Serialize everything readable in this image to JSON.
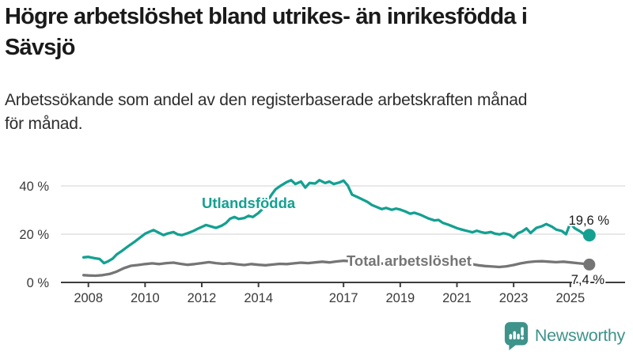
{
  "title": {
    "line1": "Högre arbetslöshet bland utrikes- än inrikesfödda i",
    "line2": "Sävsjö"
  },
  "subtitle": {
    "line1": "Arbetssökande som andel av den registerbaserade arbetskraften månad",
    "line2": "för månad."
  },
  "branding": {
    "name": "Newsworthy",
    "color": "#3E938B"
  },
  "colors": {
    "foreign_born_line": "#14A091",
    "total_line": "#757575",
    "gridline": "#d9d9d9",
    "axis": "#3c3c3c",
    "text": "#3a3a3a",
    "value_label": "#1a1a1a"
  },
  "chart_data": {
    "type": "line",
    "title": "Högre arbetslöshet bland utrikes- än inrikesfödda i Sävsjö",
    "subtitle": "Arbetssökande som andel av den registerbaserade arbetskraften månad för månad.",
    "xlabel": "",
    "ylabel": "",
    "xlim": [
      2007.7,
      2026.0
    ],
    "ylim": [
      0,
      45
    ],
    "grid": "horizontal",
    "x_ticks": [
      2008,
      2010,
      2012,
      2014,
      2017,
      2019,
      2021,
      2023,
      2025
    ],
    "y_ticks": [
      {
        "value": 0,
        "label": "0 %"
      },
      {
        "value": 20,
        "label": "20 %"
      },
      {
        "value": 40,
        "label": "40 %"
      }
    ],
    "series": [
      {
        "name": "Utlandsfödda",
        "color": "#14A091",
        "end_label": "19,6 %",
        "end_value": 19.6,
        "points": [
          [
            2007.83,
            10.4
          ],
          [
            2008.0,
            10.6
          ],
          [
            2008.2,
            10.1
          ],
          [
            2008.4,
            9.7
          ],
          [
            2008.55,
            8.0
          ],
          [
            2008.7,
            8.8
          ],
          [
            2008.85,
            9.8
          ],
          [
            2009.0,
            11.6
          ],
          [
            2009.2,
            13.2
          ],
          [
            2009.4,
            15.0
          ],
          [
            2009.6,
            16.6
          ],
          [
            2009.8,
            18.4
          ],
          [
            2010.0,
            20.2
          ],
          [
            2010.15,
            21.0
          ],
          [
            2010.3,
            21.7
          ],
          [
            2010.5,
            20.5
          ],
          [
            2010.65,
            19.6
          ],
          [
            2010.8,
            20.3
          ],
          [
            2011.0,
            20.9
          ],
          [
            2011.15,
            19.9
          ],
          [
            2011.3,
            19.6
          ],
          [
            2011.5,
            20.4
          ],
          [
            2011.7,
            21.3
          ],
          [
            2011.85,
            22.2
          ],
          [
            2012.0,
            23.0
          ],
          [
            2012.15,
            23.8
          ],
          [
            2012.35,
            23.1
          ],
          [
            2012.5,
            22.6
          ],
          [
            2012.7,
            23.5
          ],
          [
            2012.85,
            24.6
          ],
          [
            2013.0,
            26.4
          ],
          [
            2013.15,
            27.1
          ],
          [
            2013.3,
            26.3
          ],
          [
            2013.5,
            26.7
          ],
          [
            2013.65,
            27.6
          ],
          [
            2013.8,
            27.1
          ],
          [
            2014.0,
            28.8
          ],
          [
            2014.15,
            30.6
          ],
          [
            2014.3,
            33.2
          ],
          [
            2014.45,
            36.2
          ],
          [
            2014.6,
            38.6
          ],
          [
            2014.8,
            40.2
          ],
          [
            2015.0,
            41.6
          ],
          [
            2015.15,
            42.4
          ],
          [
            2015.3,
            40.8
          ],
          [
            2015.5,
            41.8
          ],
          [
            2015.65,
            39.3
          ],
          [
            2015.8,
            41.2
          ],
          [
            2016.0,
            41.0
          ],
          [
            2016.15,
            42.4
          ],
          [
            2016.35,
            41.2
          ],
          [
            2016.5,
            41.8
          ],
          [
            2016.65,
            40.8
          ],
          [
            2016.85,
            41.4
          ],
          [
            2017.0,
            42.2
          ],
          [
            2017.15,
            40.2
          ],
          [
            2017.3,
            36.4
          ],
          [
            2017.5,
            35.3
          ],
          [
            2017.7,
            34.2
          ],
          [
            2017.85,
            33.3
          ],
          [
            2018.0,
            32.1
          ],
          [
            2018.2,
            31.1
          ],
          [
            2018.35,
            30.4
          ],
          [
            2018.5,
            30.9
          ],
          [
            2018.7,
            30.1
          ],
          [
            2018.85,
            30.6
          ],
          [
            2019.0,
            30.2
          ],
          [
            2019.2,
            29.3
          ],
          [
            2019.35,
            28.5
          ],
          [
            2019.5,
            28.9
          ],
          [
            2019.7,
            28.1
          ],
          [
            2019.85,
            27.3
          ],
          [
            2020.0,
            26.5
          ],
          [
            2020.2,
            25.7
          ],
          [
            2020.35,
            25.9
          ],
          [
            2020.5,
            24.7
          ],
          [
            2020.7,
            23.9
          ],
          [
            2020.85,
            23.2
          ],
          [
            2021.0,
            22.5
          ],
          [
            2021.2,
            21.8
          ],
          [
            2021.4,
            21.2
          ],
          [
            2021.55,
            20.8
          ],
          [
            2021.7,
            21.4
          ],
          [
            2021.85,
            20.9
          ],
          [
            2022.0,
            20.5
          ],
          [
            2022.2,
            20.9
          ],
          [
            2022.35,
            20.2
          ],
          [
            2022.5,
            19.9
          ],
          [
            2022.65,
            20.4
          ],
          [
            2022.85,
            19.8
          ],
          [
            2023.0,
            18.6
          ],
          [
            2023.15,
            20.4
          ],
          [
            2023.3,
            21.1
          ],
          [
            2023.45,
            22.4
          ],
          [
            2023.6,
            20.5
          ],
          [
            2023.8,
            22.6
          ],
          [
            2024.0,
            23.3
          ],
          [
            2024.15,
            24.2
          ],
          [
            2024.35,
            23.1
          ],
          [
            2024.5,
            21.9
          ],
          [
            2024.7,
            21.3
          ],
          [
            2024.85,
            20.0
          ],
          [
            2025.0,
            24.6
          ],
          [
            2025.15,
            22.5
          ],
          [
            2025.35,
            21.1
          ],
          [
            2025.5,
            19.9
          ],
          [
            2025.67,
            19.6
          ]
        ]
      },
      {
        "name": "Total arbetslöshet",
        "color": "#757575",
        "end_label": "7,4 %",
        "end_value": 7.4,
        "points": [
          [
            2007.83,
            3.0
          ],
          [
            2008.0,
            2.9
          ],
          [
            2008.25,
            2.8
          ],
          [
            2008.5,
            3.0
          ],
          [
            2008.75,
            3.5
          ],
          [
            2009.0,
            4.5
          ],
          [
            2009.25,
            5.9
          ],
          [
            2009.5,
            6.9
          ],
          [
            2009.75,
            7.2
          ],
          [
            2010.0,
            7.6
          ],
          [
            2010.25,
            7.9
          ],
          [
            2010.5,
            7.6
          ],
          [
            2010.75,
            8.0
          ],
          [
            2011.0,
            8.2
          ],
          [
            2011.25,
            7.7
          ],
          [
            2011.5,
            7.3
          ],
          [
            2011.75,
            7.6
          ],
          [
            2012.0,
            8.0
          ],
          [
            2012.25,
            8.4
          ],
          [
            2012.5,
            8.0
          ],
          [
            2012.75,
            7.7
          ],
          [
            2013.0,
            7.9
          ],
          [
            2013.25,
            7.5
          ],
          [
            2013.5,
            7.2
          ],
          [
            2013.75,
            7.6
          ],
          [
            2014.0,
            7.3
          ],
          [
            2014.25,
            7.1
          ],
          [
            2014.5,
            7.4
          ],
          [
            2014.75,
            7.7
          ],
          [
            2015.0,
            7.6
          ],
          [
            2015.25,
            7.9
          ],
          [
            2015.5,
            8.2
          ],
          [
            2015.75,
            8.0
          ],
          [
            2016.0,
            8.3
          ],
          [
            2016.25,
            8.6
          ],
          [
            2016.5,
            8.3
          ],
          [
            2016.75,
            8.7
          ],
          [
            2017.0,
            9.0
          ],
          [
            2017.25,
            8.8
          ],
          [
            2017.5,
            8.6
          ],
          [
            2017.75,
            8.4
          ],
          [
            2018.0,
            8.1
          ],
          [
            2018.25,
            7.9
          ],
          [
            2018.5,
            7.7
          ],
          [
            2018.75,
            7.5
          ],
          [
            2019.0,
            7.5
          ],
          [
            2019.25,
            7.7
          ],
          [
            2019.5,
            8.0
          ],
          [
            2019.75,
            8.4
          ],
          [
            2020.0,
            8.9
          ],
          [
            2020.25,
            9.3
          ],
          [
            2020.5,
            9.1
          ],
          [
            2020.75,
            8.8
          ],
          [
            2021.0,
            8.4
          ],
          [
            2021.25,
            8.0
          ],
          [
            2021.5,
            7.6
          ],
          [
            2021.75,
            7.1
          ],
          [
            2022.0,
            6.8
          ],
          [
            2022.25,
            6.6
          ],
          [
            2022.5,
            6.4
          ],
          [
            2022.75,
            6.7
          ],
          [
            2023.0,
            7.2
          ],
          [
            2023.25,
            7.9
          ],
          [
            2023.5,
            8.4
          ],
          [
            2023.75,
            8.7
          ],
          [
            2024.0,
            8.8
          ],
          [
            2024.25,
            8.6
          ],
          [
            2024.5,
            8.4
          ],
          [
            2024.75,
            8.6
          ],
          [
            2025.0,
            8.3
          ],
          [
            2025.25,
            8.0
          ],
          [
            2025.5,
            7.7
          ],
          [
            2025.67,
            7.4
          ]
        ]
      }
    ],
    "legend_position": "inline-labels"
  }
}
